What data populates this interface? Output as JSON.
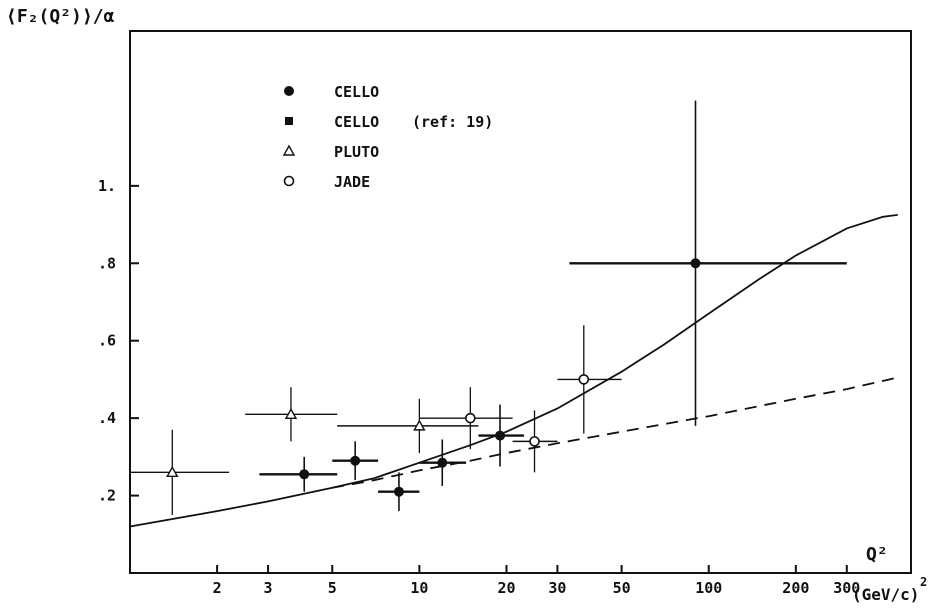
{
  "chart_data": {
    "type": "scatter",
    "title": "",
    "ylabel": "⟨F₂(Q²)⟩/α",
    "xlabel": "Q²",
    "x_unit": "(GeV/c)",
    "x_unit_sup": "2",
    "x_scale": "log",
    "xlim": [
      1.0,
      500
    ],
    "ylim": [
      0.0,
      1.4
    ],
    "grid": false,
    "legend_position": "top-left",
    "x_ticks": [
      {
        "value": 2,
        "label": "2"
      },
      {
        "value": 3,
        "label": "3"
      },
      {
        "value": 5,
        "label": "5"
      },
      {
        "value": 10,
        "label": "10"
      },
      {
        "value": 20,
        "label": "20"
      },
      {
        "value": 30,
        "label": "30"
      },
      {
        "value": 50,
        "label": "50"
      },
      {
        "value": 100,
        "label": "100"
      },
      {
        "value": 200,
        "label": "200"
      },
      {
        "value": 300,
        "label": "300"
      }
    ],
    "y_ticks": [
      {
        "value": 0.2,
        "label": ".2"
      },
      {
        "value": 0.4,
        "label": ".4"
      },
      {
        "value": 0.6,
        "label": ".6"
      },
      {
        "value": 0.8,
        "label": ".8"
      },
      {
        "value": 1.0,
        "label": "1."
      }
    ],
    "legend": [
      {
        "name": "CELLO",
        "note": "",
        "marker": "filled-circle"
      },
      {
        "name": "CELLO",
        "note": "(ref: 19)",
        "marker": "filled-square"
      },
      {
        "name": "PLUTO",
        "note": "",
        "marker": "open-triangle"
      },
      {
        "name": "JADE",
        "note": "",
        "marker": "open-circle"
      }
    ],
    "series": [
      {
        "name": "CELLO",
        "marker": "filled-circle",
        "points": [
          {
            "x": 4.0,
            "xlo": 2.8,
            "xhi": 5.2,
            "y": 0.255,
            "yerr": 0.045
          },
          {
            "x": 6.0,
            "xlo": 5.0,
            "xhi": 7.2,
            "y": 0.29,
            "yerr": 0.05
          },
          {
            "x": 8.5,
            "xlo": 7.2,
            "xhi": 10.0,
            "y": 0.21,
            "yerr": 0.05
          },
          {
            "x": 12.0,
            "xlo": 10.0,
            "xhi": 14.5,
            "y": 0.285,
            "yerr": 0.06
          },
          {
            "x": 19.0,
            "xlo": 16.0,
            "xhi": 23.0,
            "y": 0.355,
            "yerr": 0.08
          },
          {
            "x": 90.0,
            "xlo": 33.0,
            "xhi": 300.0,
            "y": 0.8,
            "yerr": 0.42
          }
        ]
      },
      {
        "name": "PLUTO",
        "marker": "open-triangle",
        "points": [
          {
            "x": 1.4,
            "xlo": 1.0,
            "xhi": 2.2,
            "y": 0.26,
            "yerr": 0.11
          },
          {
            "x": 3.6,
            "xlo": 2.5,
            "xhi": 5.2,
            "y": 0.41,
            "yerr": 0.07
          },
          {
            "x": 10.0,
            "xlo": 5.2,
            "xhi": 16.0,
            "y": 0.38,
            "yerr": 0.07
          }
        ]
      },
      {
        "name": "JADE",
        "marker": "open-circle",
        "points": [
          {
            "x": 15.0,
            "xlo": 10.0,
            "xhi": 21.0,
            "y": 0.4,
            "yerr": 0.08
          },
          {
            "x": 25.0,
            "xlo": 21.0,
            "xhi": 30.0,
            "y": 0.34,
            "yerr": 0.08
          },
          {
            "x": 37.0,
            "xlo": 30.0,
            "xhi": 50.0,
            "y": 0.5,
            "yerr": 0.14
          }
        ]
      }
    ],
    "curves": [
      {
        "style": "solid",
        "points": [
          [
            1.0,
            0.12
          ],
          [
            2.0,
            0.16
          ],
          [
            3.0,
            0.185
          ],
          [
            5.0,
            0.22
          ],
          [
            7.0,
            0.245
          ],
          [
            10.0,
            0.285
          ],
          [
            15.0,
            0.33
          ],
          [
            20.0,
            0.365
          ],
          [
            30.0,
            0.425
          ],
          [
            50.0,
            0.52
          ],
          [
            70.0,
            0.59
          ],
          [
            100.0,
            0.67
          ],
          [
            150.0,
            0.76
          ],
          [
            200.0,
            0.82
          ],
          [
            300.0,
            0.89
          ],
          [
            400.0,
            0.92
          ],
          [
            450.0,
            0.925
          ]
        ]
      },
      {
        "style": "dashed",
        "points": [
          [
            5.0,
            0.22
          ],
          [
            7.0,
            0.24
          ],
          [
            10.0,
            0.265
          ],
          [
            15.0,
            0.29
          ],
          [
            20.0,
            0.31
          ],
          [
            30.0,
            0.335
          ],
          [
            50.0,
            0.365
          ],
          [
            100.0,
            0.405
          ],
          [
            200.0,
            0.45
          ],
          [
            300.0,
            0.475
          ],
          [
            450.0,
            0.505
          ]
        ]
      }
    ]
  }
}
